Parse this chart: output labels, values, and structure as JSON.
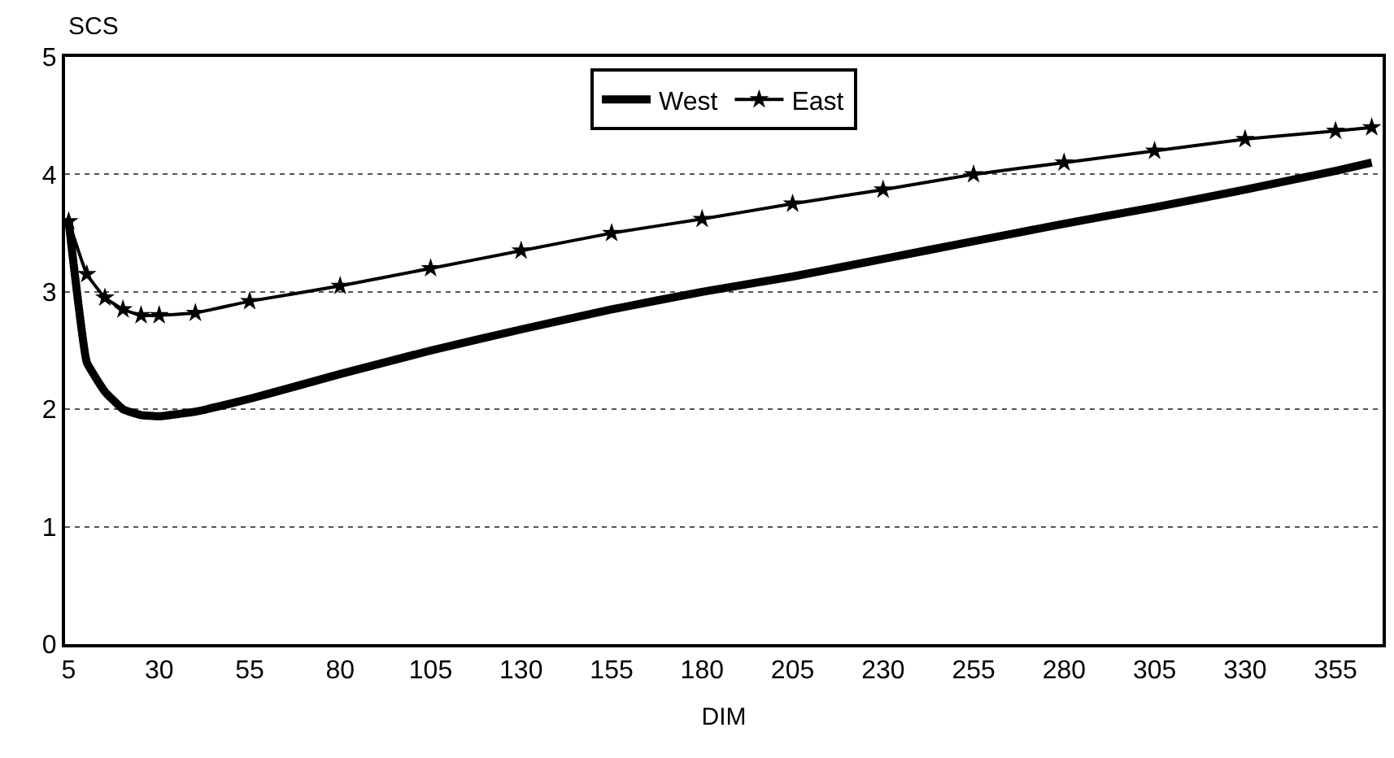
{
  "chart_data": {
    "type": "line",
    "ylabel": "SCS",
    "xlabel": "DIM",
    "xlim": [
      4,
      368
    ],
    "xticks": [
      5,
      30,
      55,
      80,
      105,
      130,
      155,
      180,
      205,
      230,
      255,
      280,
      305,
      330,
      355
    ],
    "ylim": [
      0,
      5
    ],
    "yticks": [
      0,
      1,
      2,
      3,
      4,
      5
    ],
    "grid": "y",
    "legend": "top",
    "series": [
      {
        "name": "West",
        "color": "#000000",
        "marker": "none",
        "x": [
          5,
          10,
          15,
          20,
          25,
          30,
          40,
          50,
          60,
          80,
          105,
          130,
          155,
          180,
          205,
          230,
          255,
          280,
          305,
          330,
          355,
          365
        ],
        "values": [
          3.6,
          2.4,
          2.15,
          2.0,
          1.95,
          1.94,
          1.98,
          2.05,
          2.13,
          2.3,
          2.5,
          2.68,
          2.85,
          3.0,
          3.13,
          3.28,
          3.43,
          3.58,
          3.72,
          3.87,
          4.03,
          4.1
        ]
      },
      {
        "name": "East",
        "color": "#000000",
        "marker": "star",
        "x": [
          5,
          10,
          15,
          20,
          25,
          30,
          40,
          55,
          80,
          105,
          130,
          155,
          180,
          205,
          230,
          255,
          280,
          305,
          330,
          355,
          365
        ],
        "values": [
          3.6,
          3.15,
          2.95,
          2.85,
          2.8,
          2.8,
          2.82,
          2.92,
          3.05,
          3.2,
          3.35,
          3.5,
          3.62,
          3.75,
          3.87,
          4.0,
          4.1,
          4.2,
          4.3,
          4.37,
          4.4
        ]
      }
    ]
  }
}
